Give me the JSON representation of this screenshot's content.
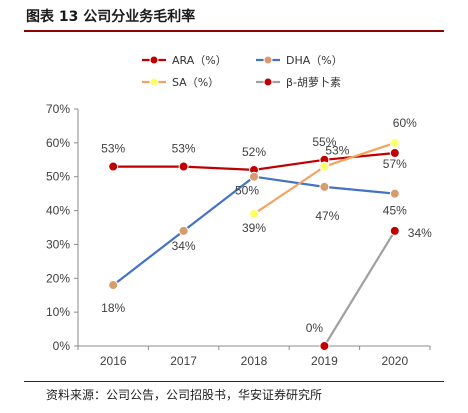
{
  "header": {
    "title": "图表 13 公司分业务毛利率"
  },
  "footer": {
    "source": "资料来源：公司公告，公司招股书，华安证券研究所"
  },
  "chart_data": {
    "type": "line",
    "title": "",
    "xlabel": "",
    "ylabel": "",
    "categories": [
      "2016",
      "2017",
      "2018",
      "2019",
      "2020"
    ],
    "ylim": [
      0,
      70
    ],
    "y_ticks": [
      "0%",
      "10%",
      "20%",
      "30%",
      "40%",
      "50%",
      "60%",
      "70%"
    ],
    "grid": false,
    "legend_position": "top",
    "series": [
      {
        "name": "ARA（%）",
        "color": "#c00000",
        "marker_color": "#c00000",
        "values": [
          53,
          53,
          52,
          55,
          57
        ],
        "labels": [
          "53%",
          "53%",
          "52%",
          "55%",
          "57%"
        ]
      },
      {
        "name": "DHA（%）",
        "color": "#4472c4",
        "marker_color": "#d99a6c",
        "values": [
          18,
          34,
          50,
          47,
          45
        ],
        "labels": [
          "18%",
          "34%",
          "50%",
          "47%",
          "45%"
        ]
      },
      {
        "name": "SA（%）",
        "color": "#f4a460",
        "marker_color": "#ffff66",
        "values": [
          null,
          null,
          39,
          53,
          60
        ],
        "labels": [
          null,
          null,
          "39%",
          "53%",
          "60%"
        ]
      },
      {
        "name": "β-胡萝卜素",
        "color": "#a0a0a0",
        "marker_color": "#c00000",
        "values": [
          null,
          null,
          null,
          0,
          34
        ],
        "labels": [
          null,
          null,
          null,
          "0%",
          "34%"
        ]
      }
    ]
  }
}
